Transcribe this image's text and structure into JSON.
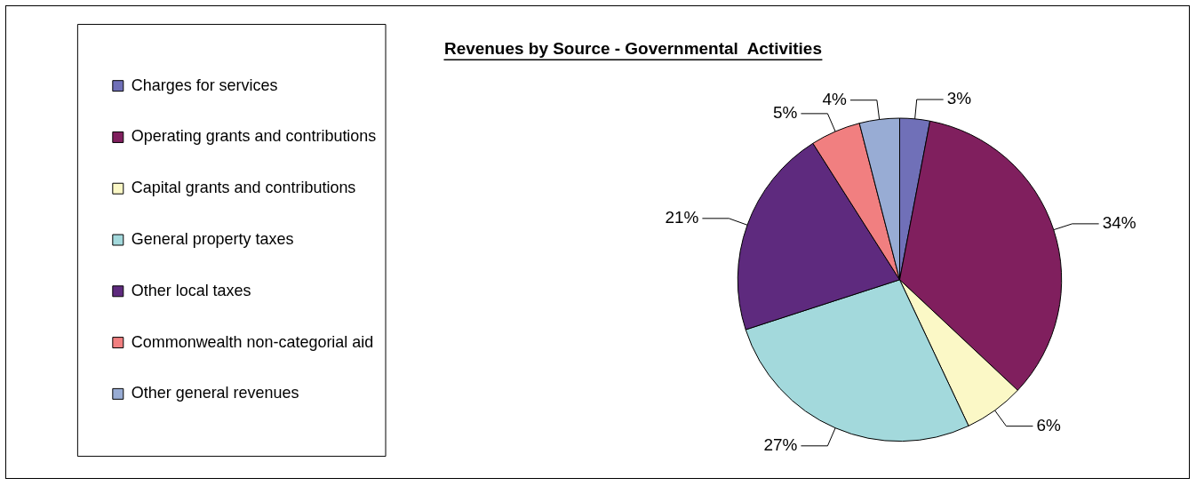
{
  "chart_data": {
    "type": "pie",
    "title": "Revenues by Source - Governmental  Activities",
    "categories": [
      "Charges for services",
      "Operating grants and contributions",
      "Capital grants and contributions",
      "General property taxes",
      "Other local taxes",
      "Commonwealth non-categorial aid",
      "Other general revenues"
    ],
    "values": [
      3,
      34,
      6,
      27,
      21,
      5,
      4
    ],
    "value_labels": [
      "3%",
      "34%",
      "6%",
      "27%",
      "21%",
      "5%",
      "4%"
    ],
    "colors": [
      "#7070b8",
      "#801f5e",
      "#fbf8c6",
      "#a3d9dc",
      "#5e2a7e",
      "#f17f80",
      "#98acd4"
    ],
    "legend": "left"
  }
}
